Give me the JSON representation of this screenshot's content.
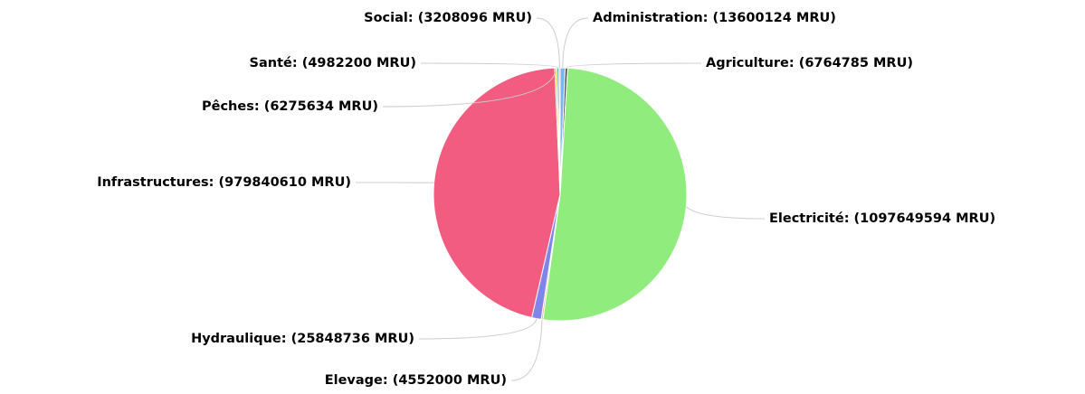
{
  "chart_data": {
    "type": "pie",
    "values": [
      13600124,
      6764785,
      1097649594,
      4552000,
      25848736,
      979840610,
      6275634,
      4982200,
      3208096
    ],
    "value_labels": [
      "Administration: (13600124 MRU)",
      "Agriculture: (6764785 MRU)",
      "Electricité: (1097649594 MRU)",
      "Elevage: (4552000 MRU)",
      "Hydraulique: (25848736 MRU)",
      "Infrastructures: (979840610 MRU)",
      "Pêches: (6275634 MRU)",
      "Santé: (4982200 MRU)",
      "Social: (3208096 MRU)"
    ],
    "colors": [
      "#7cb5ec",
      "#434348",
      "#90ed7d",
      "#f7a35c",
      "#8085e9",
      "#f15c80",
      "#e4d354",
      "#2b908f",
      "#f45b5b"
    ]
  }
}
